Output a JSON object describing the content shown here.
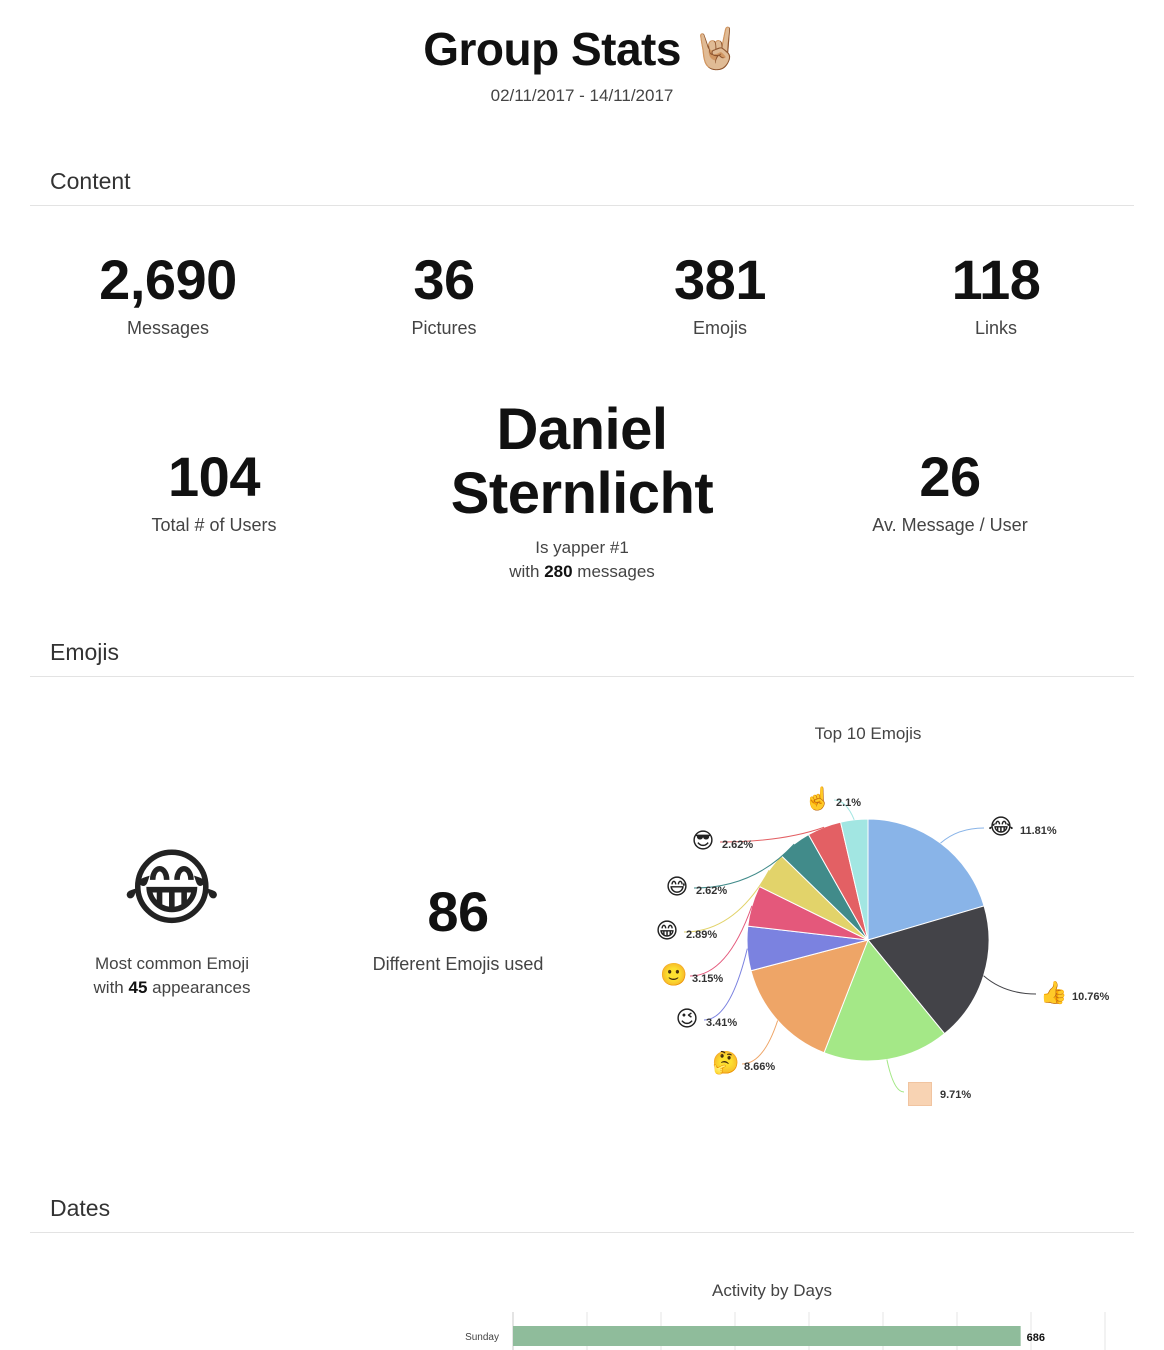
{
  "header": {
    "title": "Group Stats",
    "title_emoji": "🤘🏼",
    "date_range": "02/11/2017 - 14/11/2017"
  },
  "sections": {
    "content": "Content",
    "emojis": "Emojis",
    "dates": "Dates"
  },
  "content_stats": {
    "messages": {
      "value": "2,690",
      "label": "Messages"
    },
    "pictures": {
      "value": "36",
      "label": "Pictures"
    },
    "emojis": {
      "value": "381",
      "label": "Emojis"
    },
    "links": {
      "value": "118",
      "label": "Links"
    },
    "users": {
      "value": "104",
      "label": "Total # of Users"
    },
    "avg": {
      "value": "26",
      "label": "Av. Message / User"
    }
  },
  "yapper": {
    "name_line1": "Daniel",
    "name_line2": "Sternlicht",
    "caption": "Is yapper #1",
    "with_prefix": "with",
    "count": "280",
    "suffix": "messages"
  },
  "emoji_stats": {
    "most_common_emoji": "😂",
    "most_common_caption": "Most common Emoji",
    "with_prefix": "with",
    "appearances": "45",
    "appearances_suffix": "appearances",
    "different_value": "86",
    "different_label": "Different Emojis used"
  },
  "chart_data": [
    {
      "type": "pie",
      "title": "Top 10 Emojis",
      "slices": [
        {
          "emoji": "😂",
          "label": "11.81%",
          "value": 11.81,
          "color": "#89b4e8"
        },
        {
          "emoji": "👍",
          "label": "10.76%",
          "value": 10.76,
          "color": "#434348"
        },
        {
          "emoji": "",
          "label": "9.71%",
          "value": 9.71,
          "color": "#a4e887"
        },
        {
          "emoji": "🤔",
          "label": "8.66%",
          "value": 8.66,
          "color": "#eea567"
        },
        {
          "emoji": "😉",
          "label": "3.41%",
          "value": 3.41,
          "color": "#7b82e0"
        },
        {
          "emoji": "🙂",
          "label": "3.15%",
          "value": 3.15,
          "color": "#e4587b"
        },
        {
          "emoji": "😁",
          "label": "2.89%",
          "value": 2.89,
          "color": "#e2d36a"
        },
        {
          "emoji": "😅",
          "label": "2.62%",
          "value": 2.62,
          "color": "#418b8a"
        },
        {
          "emoji": "😎",
          "label": "2.62%",
          "value": 2.62,
          "color": "#e36064"
        },
        {
          "emoji": "☝️",
          "label": "2.1%",
          "value": 2.1,
          "color": "#a2e6e2"
        }
      ]
    },
    {
      "type": "bar",
      "title": "Activity by Days",
      "categories": [
        "Sunday"
      ],
      "values": [
        686
      ],
      "data_labels": [
        "686"
      ],
      "bar_color": "#8fbc9b"
    }
  ]
}
